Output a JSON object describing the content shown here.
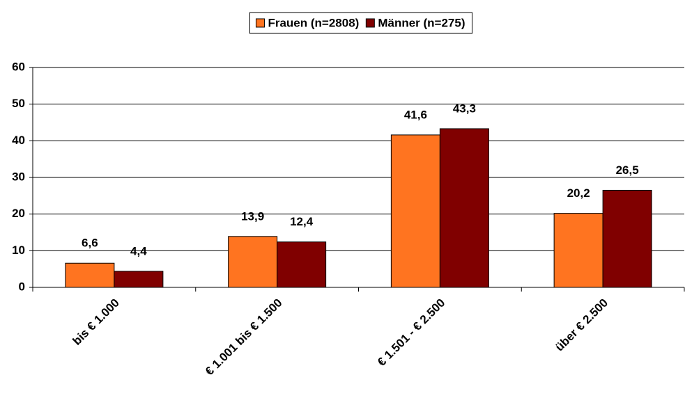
{
  "chart_data": {
    "type": "bar",
    "categories": [
      "bis € 1.000",
      "€ 1.001 bis € 1.500",
      "€ 1.501 - € 2.500",
      "über € 2.500"
    ],
    "series": [
      {
        "name": "Frauen (n=2808)",
        "color": "#ff7420",
        "values": [
          6.6,
          13.9,
          41.6,
          20.2
        ],
        "value_labels": [
          "6,6",
          "13,9",
          "41,6",
          "20,2"
        ]
      },
      {
        "name": "Männer (n=275)",
        "color": "#800000",
        "values": [
          4.4,
          12.4,
          43.3,
          26.5
        ],
        "value_labels": [
          "4,4",
          "12,4",
          "43,3",
          "26,5"
        ]
      }
    ],
    "ylim": [
      0,
      60
    ],
    "yticks": [
      0,
      10,
      20,
      30,
      40,
      50,
      60
    ],
    "grid": true,
    "legend": "top"
  }
}
